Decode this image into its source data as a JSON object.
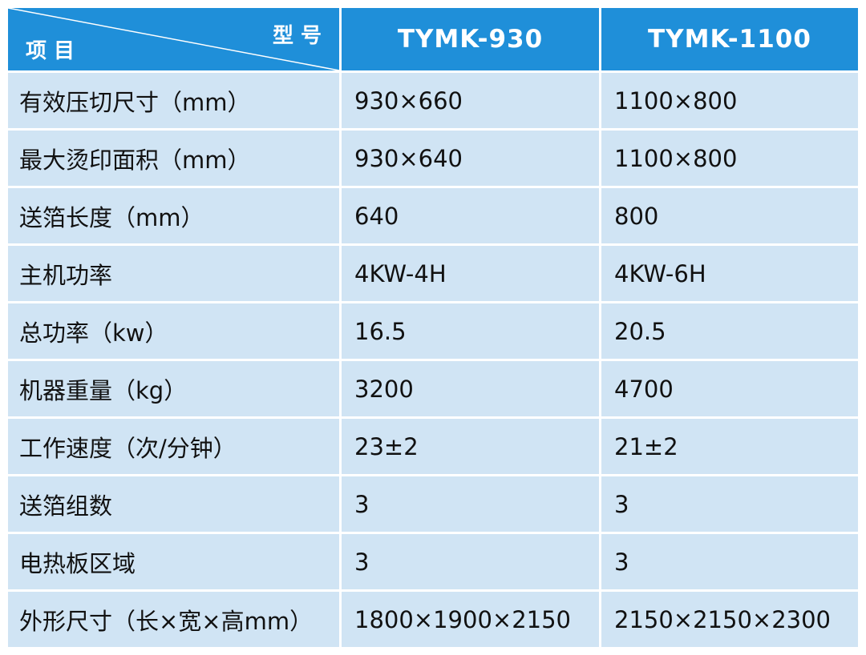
{
  "header": {
    "corner_top": "型 号",
    "corner_bottom": "项 目",
    "columns": [
      "TYMK-930",
      "TYMK-1100"
    ]
  },
  "table": {
    "rows": [
      [
        "有效压切尺寸（mm）",
        "930×660",
        "1100×800"
      ],
      [
        "最大烫印面积（mm）",
        "930×640",
        "1100×800"
      ],
      [
        "送箔长度（mm）",
        "640",
        "800"
      ],
      [
        "主机功率",
        "4KW-4H",
        "4KW-6H"
      ],
      [
        "总功率（kw）",
        "16.5",
        "20.5"
      ],
      [
        "机器重量（kg）",
        "3200",
        "4700"
      ],
      [
        "工作速度（次/分钟）",
        "23±2",
        "21±2"
      ],
      [
        "送箔组数",
        "3",
        "3"
      ],
      [
        "电热板区域",
        "3",
        "3"
      ],
      [
        "外形尺寸（长×宽×高mm）",
        "1800×1900×2150",
        "2150×2150×2300"
      ]
    ]
  }
}
